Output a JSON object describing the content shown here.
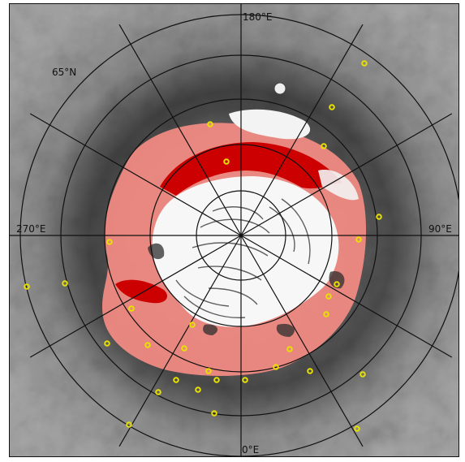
{
  "map": {
    "projection": "north polar stereographic",
    "labels": {
      "lon_top": "180°E",
      "lon_left": "270°E",
      "lon_right": "90°E",
      "lon_bottom": "0°E",
      "lat": "65°N"
    },
    "colors": {
      "terrain_light": "#b4b4b4",
      "terrain_dark": "#4a4a4a",
      "ice_cap": "#f7f7f7",
      "layer_dark_red": "#cc0000",
      "layer_light_red": "#f08a82",
      "graticule": "#111111",
      "marker": "#e8e000"
    },
    "grid": {
      "meridian_spacing_deg": 30,
      "parallel_count": 5
    },
    "markers_visible": true
  }
}
